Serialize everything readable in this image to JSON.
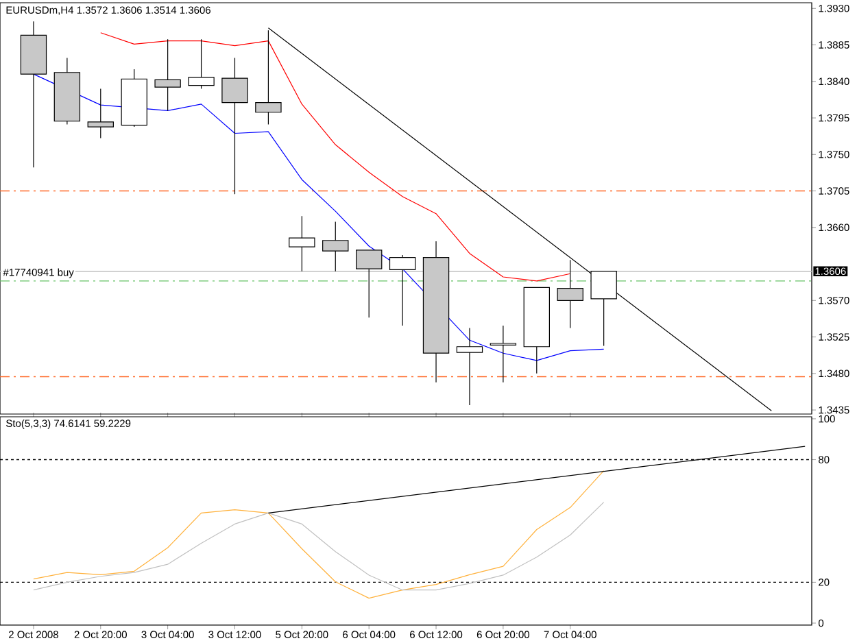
{
  "chart_data": [
    {
      "type": "candlestick",
      "title": "EURUSDm,H4  1.3572 1.3606 1.3514 1.3606",
      "categories": [
        null,
        null,
        null,
        null,
        null,
        null,
        null,
        null,
        null,
        null,
        null,
        null,
        null,
        null,
        null,
        null,
        null,
        null,
        null,
        null,
        null,
        null,
        null,
        null
      ],
      "ohlc": [
        [
          1.3897,
          1.3914,
          1.3734,
          1.3849
        ],
        [
          1.3851,
          1.3869,
          1.3787,
          1.3791
        ],
        [
          1.379,
          1.3831,
          1.377,
          1.3784
        ],
        [
          1.3786,
          1.3855,
          1.3784,
          1.3843
        ],
        [
          1.3842,
          1.3892,
          1.3804,
          1.3833
        ],
        [
          1.3835,
          1.3892,
          1.3831,
          1.3845
        ],
        [
          1.3844,
          1.3869,
          1.3701,
          1.3814
        ],
        [
          1.3814,
          1.3903,
          1.3787,
          1.3802
        ],
        [
          1.3636,
          1.3674,
          1.3606,
          1.3647
        ],
        [
          1.3644,
          1.3667,
          1.3606,
          1.3631
        ],
        [
          1.3632,
          1.3632,
          1.3549,
          1.3609
        ],
        [
          1.3608,
          1.3626,
          1.3539,
          1.3623
        ],
        [
          1.3623,
          1.3643,
          1.3469,
          1.3505
        ],
        [
          1.3506,
          1.3536,
          1.3441,
          1.3513
        ],
        [
          1.3515,
          1.3539,
          1.3469,
          1.3517
        ],
        [
          1.3513,
          1.3586,
          1.348,
          1.3586
        ],
        [
          1.3585,
          1.362,
          1.3536,
          1.357
        ],
        [
          1.3572,
          1.3606,
          1.3514,
          1.3606
        ],
        null,
        null,
        null,
        null,
        null,
        null
      ],
      "series": [
        {
          "type": "line",
          "color": "#ff0000",
          "values": [
            null,
            null,
            1.39,
            1.3886,
            1.389,
            1.389,
            1.3884,
            1.389,
            1.3812,
            1.3762,
            1.3728,
            1.3698,
            1.3677,
            1.3628,
            1.3599,
            1.3594,
            1.3603,
            null,
            null,
            null,
            null,
            null,
            null,
            null
          ]
        },
        {
          "type": "line",
          "color": "#0000ff",
          "values": [
            1.3849,
            null,
            1.3811,
            null,
            1.3804,
            1.3812,
            1.3776,
            1.3778,
            1.3719,
            1.368,
            1.3637,
            1.3609,
            null,
            1.3521,
            1.3505,
            1.3496,
            1.3508,
            1.351,
            null,
            null,
            null,
            null,
            null,
            null
          ]
        },
        {
          "type": "line",
          "color": "#000000",
          "values": [
            null,
            null,
            null,
            null,
            null,
            null,
            null,
            1.3906,
            null,
            null,
            null,
            null,
            null,
            null,
            null,
            null,
            null,
            null,
            null,
            null,
            null,
            null,
            1.3434,
            null
          ]
        }
      ],
      "ylim": [
        1.343,
        1.3937
      ],
      "yticks": [
        1.3435,
        {
          "value": 1.348,
          "label": "1.3480"
        },
        1.3525,
        {
          "value": 1.357,
          "label": "1.3570"
        },
        {
          "value": 1.366,
          "label": "1.3660"
        },
        1.3705,
        {
          "value": 1.375,
          "label": "1.3750"
        },
        1.3795,
        {
          "value": 1.384,
          "label": "1.3840"
        },
        1.3885,
        {
          "value": 1.393,
          "label": "1.3930"
        }
      ],
      "tick_labels": "y",
      "ref_lines": [
        {
          "axis": "y",
          "value": 1.3705,
          "color": "#ff6a2a",
          "line_style": "dashed"
        },
        {
          "axis": "y",
          "value": 1.3476,
          "color": "#ff6a2a",
          "line_style": "dashed"
        },
        {
          "axis": "y",
          "value": 1.3594,
          "label": "#17740941 buy",
          "color": "#66c266",
          "line_style": "dashed"
        },
        {
          "axis": "y",
          "value": 1.3606,
          "label": "1.3606",
          "color": "#c0c0c0",
          "line_style": "solid"
        }
      ]
    },
    {
      "type": "line",
      "title": "Sto(5,3,3) 74.6141 59.2229",
      "categories": [
        "2 Oct 2008",
        null,
        "2 Oct 20:00",
        null,
        "3 Oct 04:00",
        null,
        "3 Oct 12:00",
        null,
        "5 Oct 20:00",
        null,
        "6 Oct 04:00",
        null,
        "6 Oct 12:00",
        null,
        "6 Oct 20:00",
        null,
        "7 Oct 04:00",
        null,
        null,
        null,
        null,
        null,
        null,
        null
      ],
      "series": [
        {
          "color": "#ffb13b",
          "values": [
            21.6,
            24.8,
            23.7,
            25.4,
            36.9,
            53.9,
            55.5,
            53.9,
            36.4,
            20.2,
            12.2,
            16.2,
            18.9,
            23.7,
            27.8,
            45.8,
            56.6,
            74.6,
            null,
            null,
            null,
            null,
            null,
            null
          ]
        },
        {
          "color": "#c0c0c0",
          "values": [
            16.2,
            20.0,
            22.9,
            24.8,
            28.8,
            39.1,
            48.5,
            53.9,
            48.5,
            35.0,
            23.5,
            16.2,
            16.2,
            19.4,
            23.5,
            32.3,
            43.1,
            59.2,
            null,
            null,
            null,
            null,
            null,
            null
          ]
        },
        {
          "color": "#000000",
          "values": [
            null,
            null,
            null,
            null,
            null,
            null,
            null,
            53.9,
            null,
            null,
            null,
            null,
            null,
            null,
            null,
            null,
            null,
            null,
            null,
            null,
            null,
            null,
            null,
            86.5
          ]
        }
      ],
      "ylim": [
        -1,
        101
      ],
      "yticks": [
        0,
        20,
        80,
        100
      ],
      "ref_lines": [
        {
          "axis": "y",
          "value": 80,
          "color": "#000000",
          "line_style": "dotted"
        },
        {
          "axis": "y",
          "value": 20,
          "color": "#000000",
          "line_style": "dotted"
        }
      ]
    }
  ]
}
